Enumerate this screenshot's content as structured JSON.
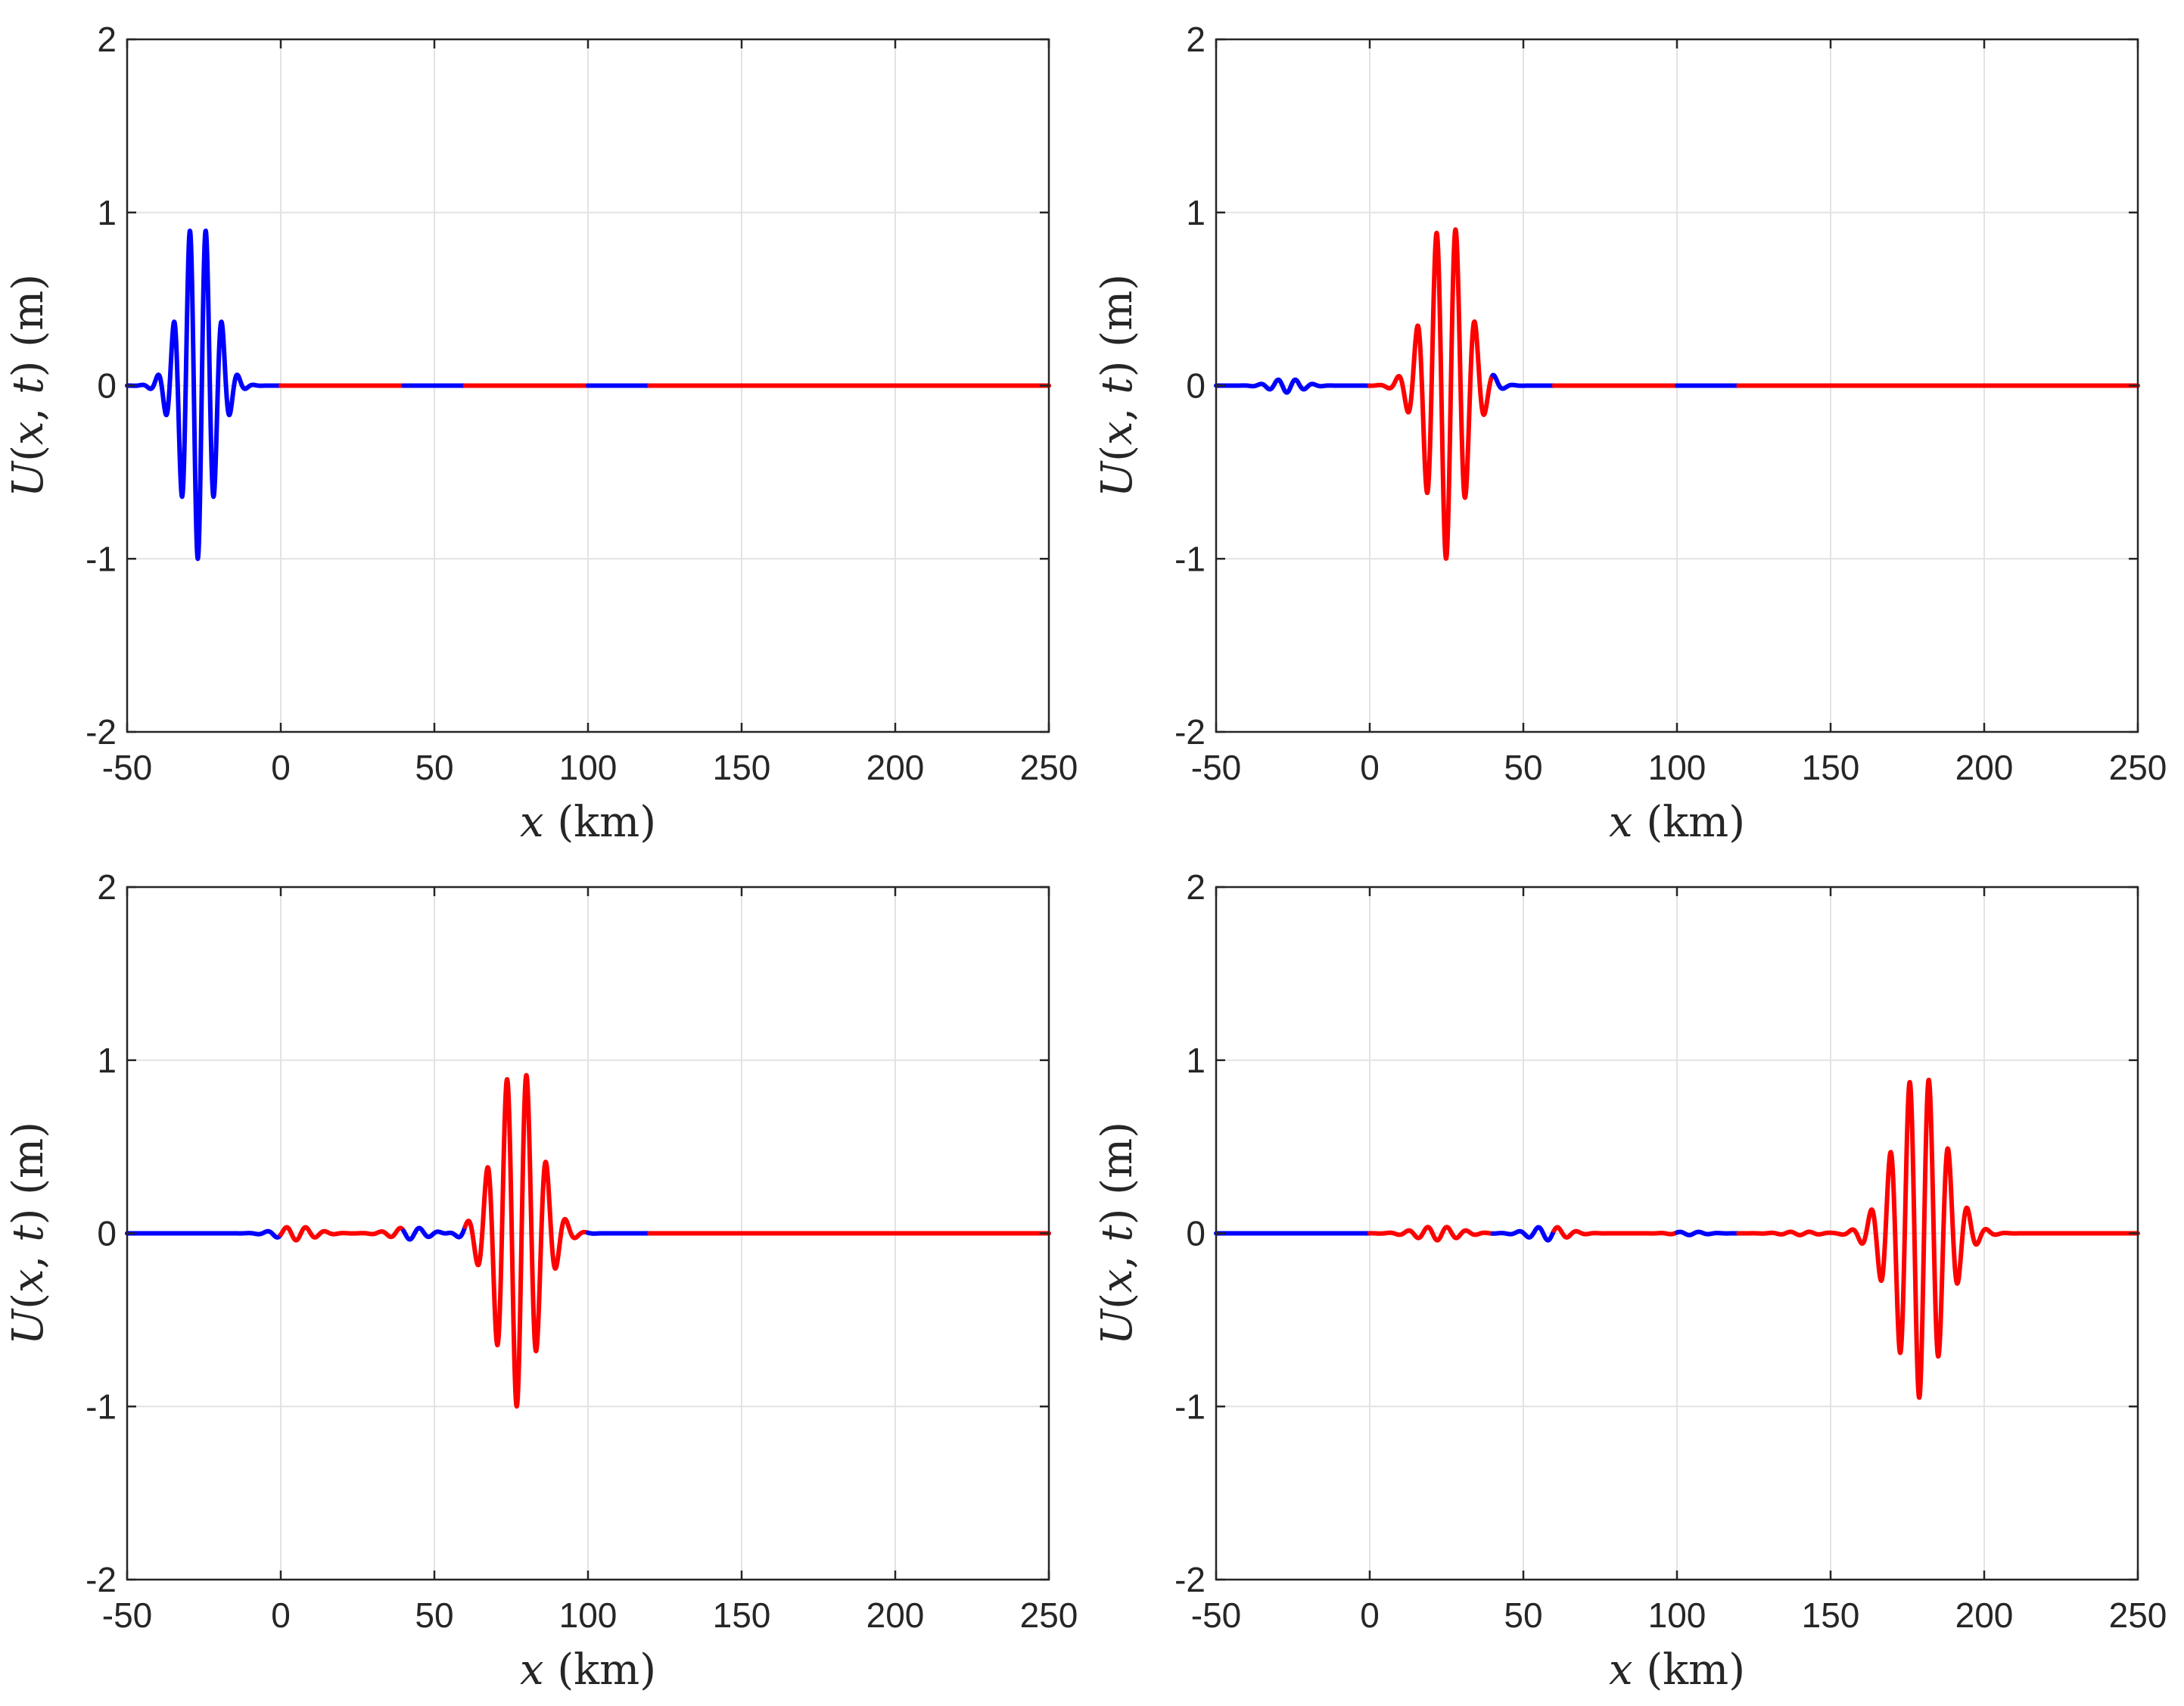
{
  "figure": {
    "rows": 2,
    "cols": 2,
    "segment_colors": {
      "deep": "#0000ff",
      "shallow": "#ff0000"
    },
    "boundaries_km": [
      -50,
      0,
      40,
      60,
      100,
      120,
      250
    ],
    "segment_kinds": [
      "deep",
      "shallow",
      "deep",
      "shallow",
      "deep",
      "shallow"
    ]
  },
  "chart_data": [
    {
      "type": "line",
      "panel": "top-left",
      "title": "",
      "xlabel": "x (km)",
      "ylabel": "U(x, t) (m)",
      "xlim": [
        -50,
        250
      ],
      "ylim": [
        -2,
        2
      ],
      "xticks": [
        "-50",
        "0",
        "50",
        "100",
        "150",
        "200",
        "250"
      ],
      "xtick_values": [
        -50,
        0,
        50,
        100,
        150,
        200,
        250
      ],
      "yticks": [
        "-2",
        "-1",
        "0",
        "1",
        "2"
      ],
      "ytick_values": [
        -2,
        -1,
        0,
        1,
        2
      ],
      "grid": true,
      "packets": [
        {
          "center": -27,
          "sigma": 5.5,
          "k": 1.2,
          "amp": 1.0,
          "phase": 0
        }
      ]
    },
    {
      "type": "line",
      "panel": "top-right",
      "title": "",
      "xlabel": "x (km)",
      "ylabel": "U(x, t) (m)",
      "xlim": [
        -50,
        250
      ],
      "ylim": [
        -2,
        2
      ],
      "xticks": [
        "-50",
        "0",
        "50",
        "100",
        "150",
        "200",
        "250"
      ],
      "xtick_values": [
        -50,
        0,
        50,
        100,
        150,
        200,
        250
      ],
      "yticks": [
        "-2",
        "-1",
        "0",
        "1",
        "2"
      ],
      "ytick_values": [
        -2,
        -1,
        0,
        1,
        2
      ],
      "grid": true,
      "packets": [
        {
          "center": 25,
          "sigma": 6.5,
          "k": 1.0,
          "amp": 1.0,
          "phase": 0.15
        },
        {
          "center": -27,
          "sigma": 5,
          "k": 1.1,
          "amp": 0.04,
          "phase": 0
        }
      ]
    },
    {
      "type": "line",
      "panel": "bottom-left",
      "title": "",
      "xlabel": "x (km)",
      "ylabel": "U(x, t) (m)",
      "xlim": [
        -50,
        250
      ],
      "ylim": [
        -2,
        2
      ],
      "xticks": [
        "-50",
        "0",
        "50",
        "100",
        "150",
        "200",
        "250"
      ],
      "xtick_values": [
        -50,
        0,
        50,
        100,
        150,
        200,
        250
      ],
      "yticks": [
        "-2",
        "-1",
        "0",
        "1",
        "2"
      ],
      "ytick_values": [
        -2,
        -1,
        0,
        1,
        2
      ],
      "grid": true,
      "packets": [
        {
          "center": 77,
          "sigma": 7,
          "k": 0.98,
          "amp": 1.0,
          "phase": 0.2
        },
        {
          "center": 42,
          "sigma": 6,
          "k": 1.0,
          "amp": 0.035,
          "phase": 0
        },
        {
          "center": 5,
          "sigma": 6,
          "k": 1.0,
          "amp": 0.04,
          "phase": 0
        }
      ]
    },
    {
      "type": "line",
      "panel": "bottom-right",
      "title": "",
      "xlabel": "x (km)",
      "ylabel": "U(x, t) (m)",
      "xlim": [
        -50,
        250
      ],
      "ylim": [
        -2,
        2
      ],
      "xticks": [
        "-50",
        "0",
        "50",
        "100",
        "150",
        "200",
        "250"
      ],
      "xtick_values": [
        -50,
        0,
        50,
        100,
        150,
        200,
        250
      ],
      "yticks": [
        "-2",
        "-1",
        "0",
        "1",
        "2"
      ],
      "ytick_values": [
        -2,
        -1,
        0,
        1,
        2
      ],
      "grid": true,
      "packets": [
        {
          "center": 179,
          "sigma": 8,
          "k": 1.0,
          "amp": 0.95,
          "phase": 0.15
        },
        {
          "center": 58,
          "sigma": 6,
          "k": 1.0,
          "amp": 0.04,
          "phase": 0
        },
        {
          "center": 22,
          "sigma": 7,
          "k": 1.0,
          "amp": 0.04,
          "phase": 0
        },
        {
          "center": 104,
          "sigma": 5,
          "k": 1.0,
          "amp": 0.01,
          "phase": 0
        },
        {
          "center": 140,
          "sigma": 6,
          "k": 1.0,
          "amp": 0.01,
          "phase": 0
        }
      ]
    }
  ]
}
